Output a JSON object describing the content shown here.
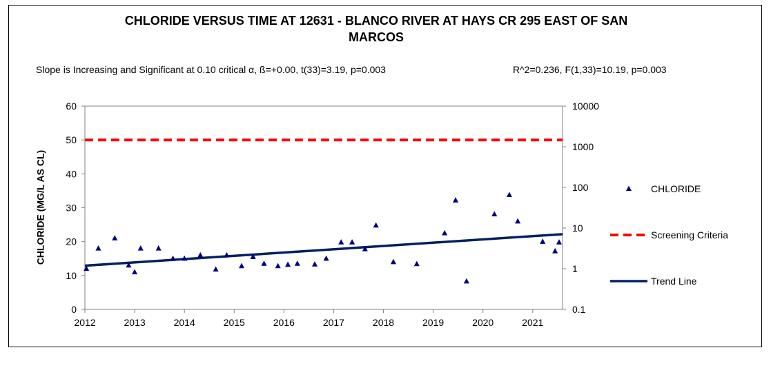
{
  "chart_data": {
    "type": "scatter",
    "title_line1": "CHLORIDE VERSUS TIME AT 12631 - BLANCO RIVER AT HAYS CR 295 EAST OF SAN",
    "title_line2": "MARCOS",
    "stats_left": "Slope is Increasing and Significant at 0.10 critical α, ß=+0.00, t(33)=3.19, p=0.003",
    "stats_right": "R^2=0.236,  F(1,33)=10.19, p=0.003",
    "ylabel": "CHLORIDE (MG/L AS CL)",
    "xlim": [
      2012,
      2021.6
    ],
    "ylim": [
      0,
      60
    ],
    "y2lim": [
      0.1,
      10000
    ],
    "y2scale": "log",
    "x_ticks": [
      "2012",
      "2013",
      "2014",
      "2015",
      "2016",
      "2017",
      "2018",
      "2019",
      "2020",
      "2021"
    ],
    "y_ticks": [
      "0",
      "10",
      "20",
      "30",
      "40",
      "50",
      "60"
    ],
    "y2_ticks": [
      "0.1",
      "1",
      "10",
      "100",
      "1000",
      "10000"
    ],
    "grid": false,
    "legend_position": "right",
    "series": [
      {
        "name": "CHLORIDE",
        "color": "#000080",
        "marker": "triangle",
        "points": [
          [
            2012.03,
            12
          ],
          [
            2012.27,
            18
          ],
          [
            2012.6,
            21
          ],
          [
            2012.88,
            13
          ],
          [
            2013.0,
            11
          ],
          [
            2013.12,
            18
          ],
          [
            2013.48,
            18
          ],
          [
            2013.77,
            15
          ],
          [
            2014.0,
            15
          ],
          [
            2014.32,
            16
          ],
          [
            2014.63,
            11.8
          ],
          [
            2014.85,
            16
          ],
          [
            2015.15,
            12.8
          ],
          [
            2015.38,
            15.5
          ],
          [
            2015.6,
            13.5
          ],
          [
            2015.88,
            12.8
          ],
          [
            2016.08,
            13.2
          ],
          [
            2016.27,
            13.5
          ],
          [
            2016.62,
            13.3
          ],
          [
            2016.85,
            15
          ],
          [
            2017.15,
            19.8
          ],
          [
            2017.37,
            19.8
          ],
          [
            2017.63,
            17.8
          ],
          [
            2017.85,
            24.8
          ],
          [
            2018.2,
            14
          ],
          [
            2018.67,
            13.4
          ],
          [
            2019.23,
            22.5
          ],
          [
            2019.45,
            32.2
          ],
          [
            2019.67,
            8.3
          ],
          [
            2020.23,
            28.1
          ],
          [
            2020.53,
            33.8
          ],
          [
            2020.7,
            26
          ],
          [
            2021.2,
            20
          ],
          [
            2021.45,
            17.2
          ],
          [
            2021.53,
            19.8
          ]
        ]
      },
      {
        "name": "Screening Criteria",
        "color": "#ff0000",
        "style": "dashed",
        "points": [
          [
            2012,
            50
          ],
          [
            2021.6,
            50
          ]
        ]
      },
      {
        "name": "Trend Line",
        "color": "#002060",
        "style": "solid",
        "points": [
          [
            2012,
            12.9
          ],
          [
            2021.6,
            22.2
          ]
        ]
      }
    ]
  }
}
